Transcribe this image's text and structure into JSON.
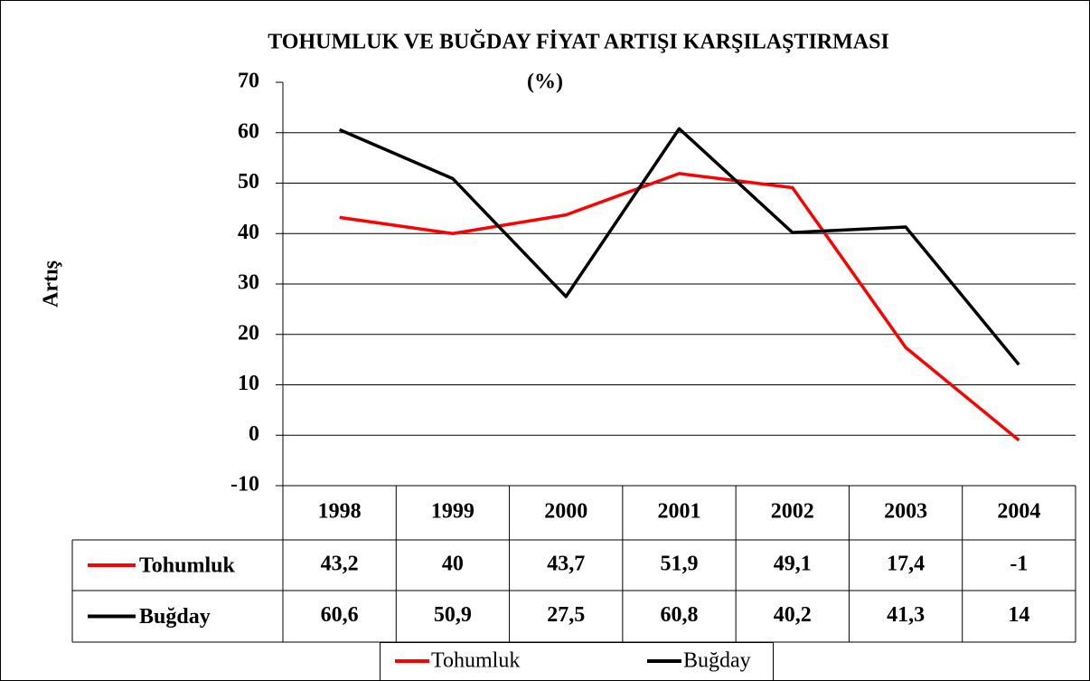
{
  "chart_data": {
    "type": "line",
    "title": "TOHUMLUK VE BUĞDAY FİYAT ARTIŞI KARŞILAŞTIRMASI",
    "subtitle": "(%)",
    "y_label": "Artış",
    "categories": [
      "1998",
      "1999",
      "2000",
      "2001",
      "2002",
      "2003",
      "2004"
    ],
    "series": [
      {
        "name": "Tohumluk",
        "color": "#ff0000",
        "values": [
          43.2,
          40,
          43.7,
          51.9,
          49.1,
          17.4,
          -1
        ],
        "value_labels": [
          "43,2",
          "40",
          "43,7",
          "51,9",
          "49,1",
          "17,4",
          "-1"
        ]
      },
      {
        "name": "Buğday",
        "color": "#000000",
        "values": [
          60.6,
          50.9,
          27.5,
          60.8,
          40.2,
          41.3,
          14
        ],
        "value_labels": [
          "60,6",
          "50,9",
          "27,5",
          "60,8",
          "40,2",
          "41,3",
          "14"
        ]
      }
    ],
    "ylim": [
      -10,
      70
    ],
    "yticks": [
      -10,
      0,
      10,
      20,
      30,
      40,
      50,
      60,
      70
    ],
    "grid": true,
    "legend": "bottom"
  }
}
